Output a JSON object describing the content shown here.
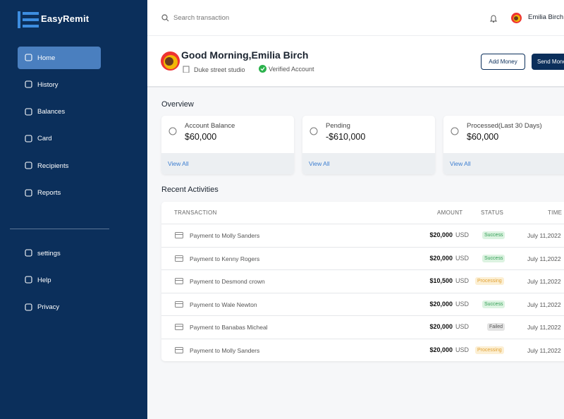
{
  "brand": "EasyRemit",
  "search_placeholder": "Search transaction",
  "user": "Emilia Birch",
  "nav": [
    "Home",
    "History",
    "Balances",
    "Card",
    "Recipients",
    "Reports"
  ],
  "nav_bottom": [
    "settings",
    "Help",
    "Privacy"
  ],
  "greeting": "Good Morning,Emilia Birch",
  "location": "Duke street studio",
  "verified": "Verified Account",
  "buttons": [
    "Add Money",
    "Send Money"
  ],
  "overview": {
    "title": "Overview",
    "cards": [
      {
        "label": "Account Balance",
        "amount": "$60,000",
        "link": "View All"
      },
      {
        "label": "Pending",
        "amount": "-$610,000",
        "link": "View All"
      },
      {
        "label": "Processed(Last 30 Days)",
        "amount": "$60,000",
        "link": "View All"
      }
    ]
  },
  "recent": {
    "title": "Recent Activities",
    "columns": [
      "TRANSACTION",
      "AMOUNT",
      "STATUS",
      "TIME"
    ],
    "rows": [
      {
        "description": "Payment to Molly Sanders",
        "amount": "$20,000",
        "currency": "USD",
        "status": "Success",
        "time": "July 11,2022"
      },
      {
        "description": "Payment to Kenny Rogers",
        "amount": "$20,000",
        "currency": "USD",
        "status": "Success",
        "time": "July 11,2022"
      },
      {
        "description": "Payment to Desmond crown",
        "amount": "$10,500",
        "currency": "USD",
        "status": "Processing",
        "time": "July 11,2022"
      },
      {
        "description": "Payment to Wale Newton",
        "amount": "$20,000",
        "currency": "USD",
        "status": "Success",
        "time": "July 11,2022"
      },
      {
        "description": "Payment to Banabas Micheal",
        "amount": "$20,000",
        "currency": "USD",
        "status": "Failed",
        "time": "July 11,2022"
      },
      {
        "description": "Payment to Molly Sanders",
        "amount": "$20,000",
        "currency": "USD",
        "status": "Processing",
        "time": "July 11,2022"
      }
    ]
  }
}
